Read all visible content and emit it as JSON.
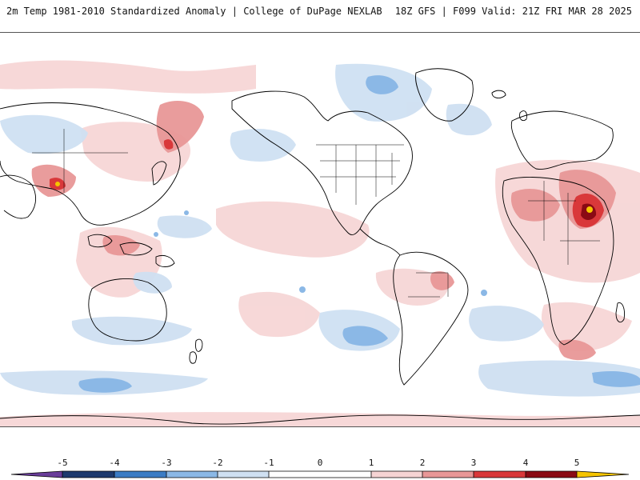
{
  "header": {
    "title_left": "2m Temp 1981-2010 Standardized Anomaly | College of DuPage NEXLAB",
    "title_right": "18Z GFS | F099 Valid: 21Z FRI MAR 28 2025"
  },
  "map": {
    "background": "#ffffff",
    "coastline_color": "#000000"
  },
  "colorbar": {
    "tick_labels": [
      "-5",
      "-4",
      "-3",
      "-2",
      "-1",
      "0",
      "1",
      "2",
      "3",
      "4",
      "5"
    ],
    "colors": {
      "lt_neg5": "#6a3d9a",
      "neg5_neg4": "#1e3a6e",
      "neg4_neg3": "#3b7cc4",
      "neg3_neg2": "#8bb8e6",
      "neg2_neg1": "#cfe0f2",
      "neg1_1": "#ffffff",
      "pos1_pos2": "#f6d4d4",
      "pos2_pos3": "#e89797",
      "pos3_pos4": "#d9383a",
      "pos4_pos5": "#8a0a14",
      "gt_pos5": "#f5c400"
    }
  }
}
